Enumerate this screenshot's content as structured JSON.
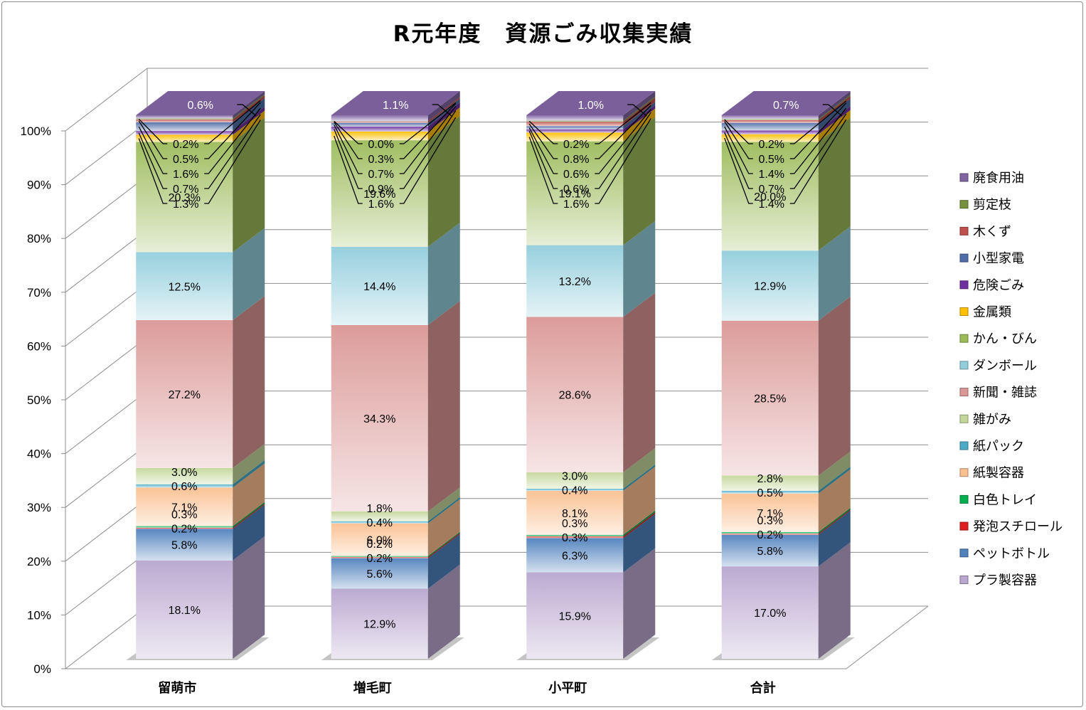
{
  "chart_data": {
    "type": "bar",
    "stacked": true,
    "percent_stacked": true,
    "three_d": true,
    "title": "R元年度　資源ごみ収集実績",
    "categories": [
      "留萌市",
      "増毛町",
      "小平町",
      "合計"
    ],
    "yticks": [
      "0%",
      "10%",
      "20%",
      "30%",
      "40%",
      "50%",
      "60%",
      "70%",
      "80%",
      "90%",
      "100%"
    ],
    "ylim": [
      0,
      100
    ],
    "grid": true,
    "legend_position": "right",
    "series": [
      {
        "name": "プラ製容器",
        "color": "#b8a6cf",
        "values": [
          18.1,
          12.9,
          15.9,
          17.0
        ],
        "labels": [
          "18.1%",
          "12.9%",
          "15.9%",
          "17.0%"
        ]
      },
      {
        "name": "ペットボトル",
        "color": "#4f81bd",
        "values": [
          5.8,
          5.6,
          6.3,
          5.8
        ],
        "labels": [
          "5.8%",
          "5.6%",
          "6.3%",
          "5.8%"
        ]
      },
      {
        "name": "発泡スチロール",
        "color": "#e02020",
        "values": [
          0.2,
          0.2,
          0.3,
          0.2
        ],
        "labels": [
          "0.2%",
          "0.2%",
          "0.3%",
          "0.2%"
        ]
      },
      {
        "name": "白色トレイ",
        "color": "#00b050",
        "values": [
          0.3,
          0.2,
          0.3,
          0.3
        ],
        "labels": [
          "0.3%",
          "0.2%",
          "0.3%",
          "0.3%"
        ]
      },
      {
        "name": "紙製容器",
        "color": "#fac090",
        "values": [
          7.1,
          6.0,
          8.1,
          7.1
        ],
        "labels": [
          "7.1%",
          "6.0%",
          "8.1%",
          "7.1%"
        ]
      },
      {
        "name": "紙パック",
        "color": "#4bacc6",
        "values": [
          0.6,
          0.4,
          0.4,
          0.5
        ],
        "labels": [
          "0.6%",
          "0.4%",
          "0.4%",
          "0.5%"
        ]
      },
      {
        "name": "雑がみ",
        "color": "#c4d79b",
        "values": [
          3.0,
          1.8,
          3.0,
          2.8
        ],
        "labels": [
          "3.0%",
          "1.8%",
          "3.0%",
          "2.8%"
        ]
      },
      {
        "name": "新聞・雑誌",
        "color": "#d99795",
        "values": [
          27.2,
          34.3,
          28.6,
          28.5
        ],
        "labels": [
          "27.2%",
          "34.3%",
          "28.6%",
          "28.5%"
        ]
      },
      {
        "name": "ダンボール",
        "color": "#92cddc",
        "values": [
          12.5,
          14.4,
          13.2,
          12.9
        ],
        "labels": [
          "12.5%",
          "14.4%",
          "13.2%",
          "12.9%"
        ]
      },
      {
        "name": "かん・びん",
        "color": "#9bbb59",
        "values": [
          20.3,
          19.6,
          19.1,
          20.0
        ],
        "labels": [
          "20.3%",
          "19.6%",
          "19.1%",
          "20.0%"
        ]
      },
      {
        "name": "金属類",
        "color": "#ffc000",
        "values": [
          1.3,
          1.6,
          1.6,
          1.4
        ],
        "labels": [
          "1.3%",
          "1.6%",
          "1.6%",
          "1.4%"
        ]
      },
      {
        "name": "危険ごみ",
        "color": "#7030a0",
        "values": [
          0.7,
          0.9,
          0.6,
          0.7
        ],
        "labels": [
          "0.7%",
          "0.9%",
          "0.6%",
          "0.7%"
        ]
      },
      {
        "name": "小型家電",
        "color": "#4f6ea8",
        "values": [
          1.6,
          0.7,
          0.6,
          1.4
        ],
        "labels": [
          "1.6%",
          "0.7%",
          "0.6%",
          "1.4%"
        ]
      },
      {
        "name": "木くず",
        "color": "#c0504d",
        "values": [
          0.5,
          0.3,
          0.8,
          0.5
        ],
        "labels": [
          "0.5%",
          "0.3%",
          "0.8%",
          "0.5%"
        ]
      },
      {
        "name": "剪定枝",
        "color": "#76923c",
        "values": [
          0.2,
          0.0,
          0.2,
          0.2
        ],
        "labels": [
          "0.2%",
          "0.0%",
          "0.2%",
          "0.2%"
        ]
      },
      {
        "name": "廃食用油",
        "color": "#8064a2",
        "values": [
          0.6,
          1.1,
          1.0,
          0.7
        ],
        "labels": [
          "0.6%",
          "1.1%",
          "1.0%",
          "0.7%"
        ]
      }
    ],
    "legend_order": [
      "廃食用油",
      "剪定枝",
      "木くず",
      "小型家電",
      "危険ごみ",
      "金属類",
      "かん・びん",
      "ダンボール",
      "新聞・雑誌",
      "雑がみ",
      "紙パック",
      "紙製容器",
      "白色トレイ",
      "発泡スチロール",
      "ペットボトル",
      "プラ製容器"
    ]
  }
}
